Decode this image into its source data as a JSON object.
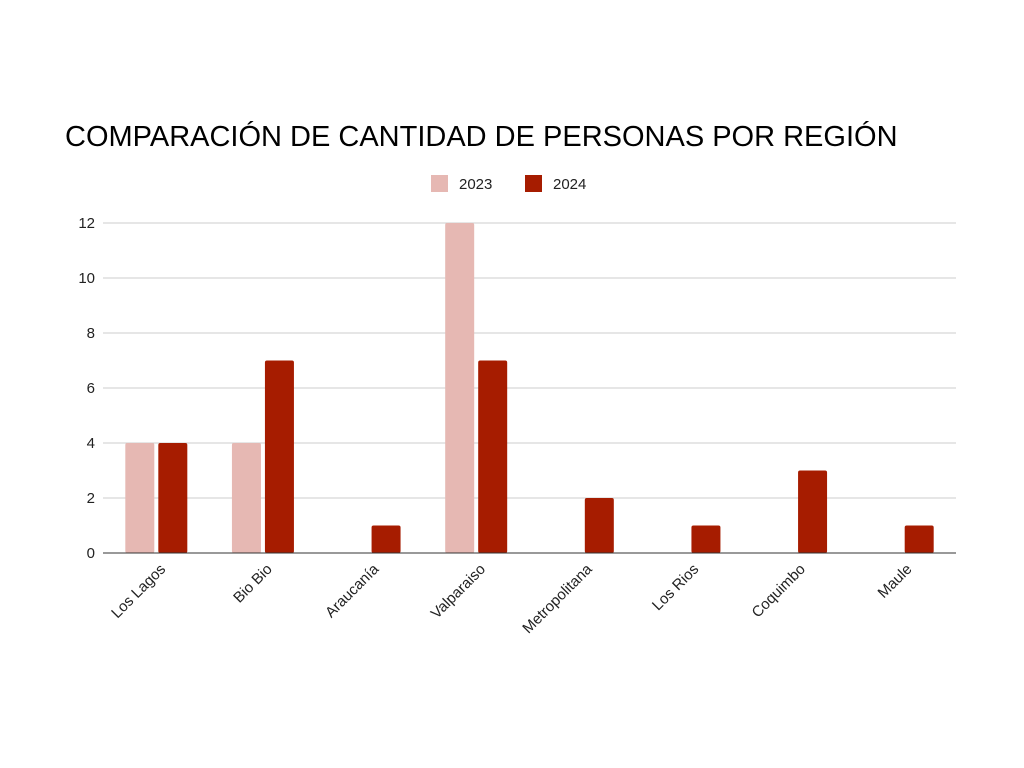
{
  "chart_data": {
    "type": "bar",
    "title": "COMPARACIÓN DE CANTIDAD DE PERSONAS POR REGIÓN",
    "xlabel": "",
    "ylabel": "",
    "categories": [
      "Los Lagos",
      "Bio Bio",
      "Araucanía",
      "Valparaiso",
      "Metropolitana",
      "Los Rios",
      "Coquimbo",
      "Maule"
    ],
    "series": [
      {
        "name": "2023",
        "color": "#e6b8b3",
        "values": [
          4,
          4,
          0,
          12,
          0,
          0,
          0,
          0
        ]
      },
      {
        "name": "2024",
        "color": "#a61c00",
        "values": [
          4,
          7,
          1,
          7,
          2,
          1,
          3,
          1
        ]
      }
    ],
    "ylim": [
      0,
      12
    ],
    "yticks": [
      0,
      2,
      4,
      6,
      8,
      10,
      12
    ],
    "grid": true,
    "legend_position": "top-center"
  }
}
